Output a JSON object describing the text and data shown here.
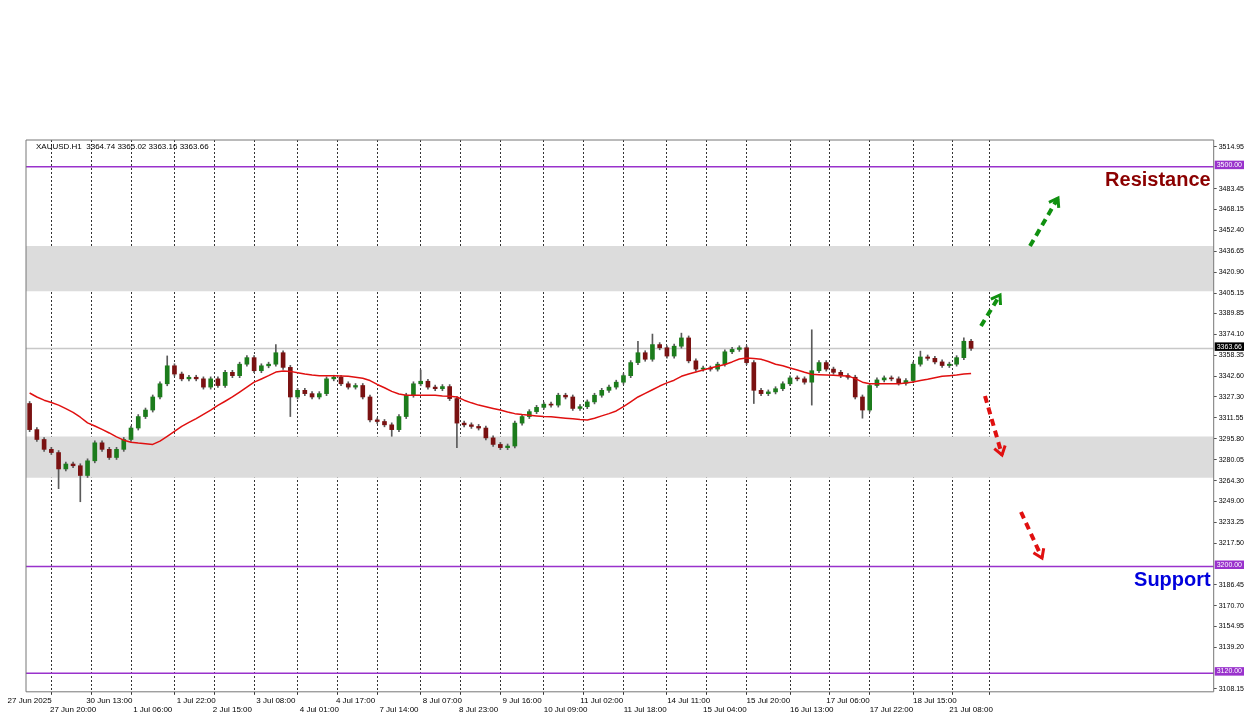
{
  "chart_data": {
    "type": "candlestick",
    "categories": [
      "27 Jun 2025",
      null,
      null,
      null,
      null,
      null,
      "27 Jun 20:00",
      null,
      null,
      null,
      null,
      "30 Jun 13:00",
      null,
      null,
      null,
      null,
      null,
      "1 Jul 06:00",
      null,
      null,
      null,
      null,
      null,
      "1 Jul 22:00",
      null,
      null,
      null,
      null,
      "2 Jul 15:00",
      null,
      null,
      null,
      null,
      null,
      "3 Jul 08:00",
      null,
      null,
      null,
      null,
      null,
      "4 Jul 01:00",
      null,
      null,
      null,
      null,
      "4 Jul 17:00",
      null,
      null,
      null,
      null,
      null,
      "7 Jul 14:00",
      null,
      null,
      null,
      null,
      null,
      "8 Jul 07:00",
      null,
      null,
      null,
      null,
      "8 Jul 23:00",
      null,
      null,
      null,
      null,
      null,
      "9 Jul 16:00",
      null,
      null,
      null,
      null,
      null,
      "10 Jul 09:00",
      null,
      null,
      null,
      null,
      "11 Jul 02:00",
      null,
      null,
      null,
      null,
      null,
      "11 Jul 18:00",
      null,
      null,
      null,
      null,
      null,
      "14 Jul 11:00",
      null,
      null,
      null,
      null,
      "15 Jul 04:00",
      null,
      null,
      null,
      null,
      null,
      "15 Jul 20:00",
      null,
      null,
      null,
      null,
      null,
      "16 Jul 13:00",
      null,
      null,
      null,
      null,
      "17 Jul 06:00",
      null,
      null,
      null,
      null,
      null,
      "17 Jul 22:00",
      null,
      null,
      null,
      null,
      null,
      "18 Jul 15:00",
      null,
      null,
      null,
      null,
      "21 Jul 08:00",
      null,
      null,
      null,
      null,
      null,
      null,
      null,
      null,
      null,
      null,
      null,
      null,
      null,
      null,
      null,
      null,
      null,
      null,
      null,
      null,
      null,
      null,
      null,
      null,
      null,
      null,
      null,
      null,
      null,
      null,
      null,
      null,
      null
    ],
    "series": [
      {
        "type": "candlestick",
        "ohlc": [
          [
            3322.3,
            3323.8,
            3301.2,
            3302.7
          ],
          [
            3302.7,
            3304.2,
            3293.8,
            3295.3
          ],
          [
            3295.3,
            3296.8,
            3286.4,
            3287.9
          ],
          [
            3287.9,
            3289.4,
            3284.0,
            3285.5
          ],
          [
            3285.5,
            3287.0,
            3258.4,
            3273.2
          ],
          [
            3273.2,
            3278.4,
            3271.7,
            3276.9
          ],
          [
            3276.9,
            3278.4,
            3274.1,
            3275.6
          ],
          [
            3275.6,
            3277.1,
            3248.6,
            3268.3
          ],
          [
            3268.3,
            3280.8,
            3266.8,
            3279.3
          ],
          [
            3279.3,
            3294.3,
            3277.8,
            3292.8
          ],
          [
            3292.8,
            3294.3,
            3286.4,
            3287.9
          ],
          [
            3287.9,
            3289.4,
            3280.3,
            3281.8
          ],
          [
            3281.8,
            3289.4,
            3280.3,
            3287.9
          ],
          [
            3287.9,
            3296.8,
            3286.4,
            3295.3
          ],
          [
            3295.3,
            3305.4,
            3293.8,
            3303.9
          ],
          [
            3303.9,
            3314.0,
            3302.4,
            3312.5
          ],
          [
            3312.5,
            3318.9,
            3311.0,
            3317.4
          ],
          [
            3317.4,
            3328.7,
            3315.9,
            3327.2
          ],
          [
            3327.2,
            3338.6,
            3325.7,
            3337.1
          ],
          [
            3337.1,
            3358.0,
            3335.6,
            3350.6
          ],
          [
            3350.6,
            3352.1,
            3342.9,
            3344.4
          ],
          [
            3344.4,
            3345.9,
            3339.3,
            3340.8
          ],
          [
            3340.8,
            3343.5,
            3339.3,
            3342.0
          ],
          [
            3342.0,
            3343.5,
            3339.3,
            3340.8
          ],
          [
            3340.8,
            3342.3,
            3333.1,
            3334.6
          ],
          [
            3334.6,
            3342.3,
            3333.1,
            3340.8
          ],
          [
            3340.8,
            3342.3,
            3334.3,
            3335.8
          ],
          [
            3335.8,
            3347.2,
            3334.3,
            3345.7
          ],
          [
            3345.7,
            3347.2,
            3341.7,
            3343.2
          ],
          [
            3343.2,
            3353.3,
            3341.7,
            3351.8
          ],
          [
            3351.8,
            3358.2,
            3350.3,
            3356.7
          ],
          [
            3356.7,
            3358.2,
            3345.4,
            3346.9
          ],
          [
            3346.9,
            3352.1,
            3345.4,
            3350.6
          ],
          [
            3350.6,
            3353.3,
            3349.1,
            3351.8
          ],
          [
            3351.8,
            3366.5,
            3350.3,
            3360.4
          ],
          [
            3360.4,
            3361.9,
            3347.9,
            3349.4
          ],
          [
            3349.4,
            3350.9,
            3312.5,
            3327.2
          ],
          [
            3327.2,
            3333.7,
            3325.7,
            3332.2
          ],
          [
            3332.2,
            3333.7,
            3328.2,
            3329.7
          ],
          [
            3329.7,
            3331.2,
            3325.7,
            3327.2
          ],
          [
            3327.2,
            3331.2,
            3325.7,
            3329.7
          ],
          [
            3329.7,
            3342.3,
            3328.2,
            3340.8
          ],
          [
            3340.8,
            3343.5,
            3339.3,
            3342.0
          ],
          [
            3342.0,
            3343.5,
            3335.6,
            3337.1
          ],
          [
            3337.1,
            3338.6,
            3333.1,
            3334.6
          ],
          [
            3334.6,
            3337.3,
            3333.1,
            3335.8
          ],
          [
            3335.8,
            3337.3,
            3325.7,
            3327.2
          ],
          [
            3327.2,
            3328.7,
            3308.5,
            3310.0
          ],
          [
            3310.0,
            3311.5,
            3307.3,
            3308.8
          ],
          [
            3308.8,
            3310.3,
            3304.8,
            3306.3
          ],
          [
            3306.3,
            3307.8,
            3297.7,
            3302.7
          ],
          [
            3302.7,
            3314.0,
            3301.2,
            3312.5
          ],
          [
            3312.5,
            3330.0,
            3311.0,
            3328.5
          ],
          [
            3328.5,
            3338.6,
            3327.0,
            3337.1
          ],
          [
            3337.1,
            3347.4,
            3335.6,
            3339.0
          ],
          [
            3339.0,
            3340.5,
            3333.1,
            3334.6
          ],
          [
            3334.6,
            3336.1,
            3331.9,
            3333.4
          ],
          [
            3333.4,
            3336.5,
            3331.9,
            3335.0
          ],
          [
            3335.0,
            3336.5,
            3324.5,
            3326.0
          ],
          [
            3326.0,
            3327.5,
            3289.2,
            3307.6
          ],
          [
            3307.6,
            3309.1,
            3304.8,
            3306.3
          ],
          [
            3306.3,
            3307.8,
            3303.6,
            3305.1
          ],
          [
            3305.1,
            3306.6,
            3302.4,
            3303.9
          ],
          [
            3303.9,
            3305.4,
            3295.0,
            3296.5
          ],
          [
            3296.5,
            3298.0,
            3290.1,
            3291.6
          ],
          [
            3291.6,
            3293.1,
            3287.7,
            3289.2
          ],
          [
            3289.2,
            3291.9,
            3287.7,
            3290.4
          ],
          [
            3290.4,
            3309.1,
            3288.9,
            3307.6
          ],
          [
            3307.6,
            3314.0,
            3306.1,
            3312.5
          ],
          [
            3312.5,
            3317.7,
            3311.0,
            3316.2
          ],
          [
            3316.2,
            3320.9,
            3314.7,
            3319.4
          ],
          [
            3319.4,
            3323.3,
            3317.9,
            3321.8
          ],
          [
            3321.8,
            3323.3,
            3319.6,
            3321.1
          ],
          [
            3321.1,
            3330.0,
            3319.6,
            3328.5
          ],
          [
            3328.5,
            3330.0,
            3325.7,
            3327.2
          ],
          [
            3327.2,
            3328.7,
            3317.1,
            3318.6
          ],
          [
            3318.6,
            3321.4,
            3317.1,
            3319.9
          ],
          [
            3319.9,
            3325.0,
            3318.4,
            3323.5
          ],
          [
            3323.5,
            3330.0,
            3322.0,
            3328.5
          ],
          [
            3328.5,
            3333.7,
            3327.0,
            3332.2
          ],
          [
            3332.2,
            3336.1,
            3330.7,
            3334.6
          ],
          [
            3334.6,
            3339.8,
            3333.1,
            3338.3
          ],
          [
            3338.3,
            3344.7,
            3336.8,
            3343.2
          ],
          [
            3343.2,
            3354.5,
            3341.7,
            3353.0
          ],
          [
            3353.0,
            3369.0,
            3351.5,
            3360.4
          ],
          [
            3360.4,
            3361.9,
            3354.0,
            3355.5
          ],
          [
            3355.5,
            3374.4,
            3354.0,
            3366.5
          ],
          [
            3366.5,
            3368.0,
            3362.6,
            3364.1
          ],
          [
            3364.1,
            3365.6,
            3356.4,
            3357.9
          ],
          [
            3357.9,
            3366.8,
            3356.4,
            3365.3
          ],
          [
            3365.3,
            3375.1,
            3363.8,
            3371.5
          ],
          [
            3371.5,
            3373.0,
            3352.8,
            3354.3
          ],
          [
            3354.3,
            3355.8,
            3346.6,
            3348.1
          ],
          [
            3348.1,
            3350.4,
            3346.6,
            3348.9
          ],
          [
            3348.9,
            3350.4,
            3346.6,
            3348.1
          ],
          [
            3348.1,
            3353.3,
            3346.6,
            3351.8
          ],
          [
            3351.8,
            3362.6,
            3350.3,
            3361.1
          ],
          [
            3361.1,
            3364.4,
            3359.6,
            3362.9
          ],
          [
            3362.9,
            3365.6,
            3361.4,
            3364.1
          ],
          [
            3364.1,
            3365.6,
            3351.5,
            3353.0
          ],
          [
            3353.0,
            3354.5,
            3322.3,
            3332.2
          ],
          [
            3332.2,
            3333.7,
            3328.2,
            3329.7
          ],
          [
            3329.7,
            3332.5,
            3328.2,
            3331.0
          ],
          [
            3331.0,
            3334.9,
            3329.5,
            3333.4
          ],
          [
            3333.4,
            3338.6,
            3331.9,
            3337.1
          ],
          [
            3337.1,
            3343.0,
            3335.6,
            3341.5
          ],
          [
            3341.5,
            3343.0,
            3339.3,
            3340.8
          ],
          [
            3340.8,
            3342.3,
            3336.8,
            3338.3
          ],
          [
            3338.3,
            3377.6,
            3321.1,
            3346.9
          ],
          [
            3346.9,
            3354.5,
            3345.4,
            3353.0
          ],
          [
            3353.0,
            3354.5,
            3346.6,
            3348.1
          ],
          [
            3348.1,
            3349.6,
            3344.2,
            3345.7
          ],
          [
            3345.7,
            3347.2,
            3341.7,
            3343.2
          ],
          [
            3343.2,
            3344.7,
            3340.5,
            3342.0
          ],
          [
            3342.0,
            3343.5,
            3325.7,
            3327.2
          ],
          [
            3327.2,
            3328.7,
            3311.3,
            3317.4
          ],
          [
            3317.4,
            3337.3,
            3315.9,
            3335.8
          ],
          [
            3335.8,
            3341.5,
            3334.3,
            3340.0
          ],
          [
            3340.0,
            3343.0,
            3338.5,
            3341.5
          ],
          [
            3341.5,
            3343.0,
            3339.3,
            3340.8
          ],
          [
            3340.8,
            3342.3,
            3336.1,
            3337.6
          ],
          [
            3337.6,
            3341.0,
            3336.1,
            3339.5
          ],
          [
            3339.5,
            3353.3,
            3338.0,
            3351.8
          ],
          [
            3351.8,
            3361.6,
            3350.3,
            3357.2
          ],
          [
            3357.2,
            3358.7,
            3354.7,
            3356.2
          ],
          [
            3356.2,
            3357.7,
            3352.0,
            3353.5
          ],
          [
            3353.5,
            3355.0,
            3349.3,
            3350.8
          ],
          [
            3350.8,
            3353.3,
            3349.3,
            3351.8
          ],
          [
            3351.8,
            3358.2,
            3350.3,
            3356.7
          ],
          [
            3356.7,
            3371.5,
            3355.2,
            3369.0
          ],
          [
            3369.0,
            3370.5,
            3362.2,
            3363.7
          ],
          null,
          null,
          null,
          null,
          null,
          null,
          null,
          null,
          null,
          null,
          null,
          null,
          null,
          null,
          null,
          null,
          null,
          null,
          null,
          null,
          null,
          null,
          null,
          null,
          null,
          null,
          null,
          null,
          null,
          null,
          null,
          null,
          null
        ]
      },
      {
        "type": "line",
        "color": "#e01010",
        "values": [
          3330.2,
          3327.2,
          3324.8,
          3323.1,
          3321.1,
          3318.4,
          3315.7,
          3312.0,
          3307.8,
          3305.4,
          3302.9,
          3300.2,
          3297.3,
          3294.8,
          3293.3,
          3292.6,
          3292.1,
          3291.6,
          3294.1,
          3297.7,
          3301.4,
          3305.1,
          3308.1,
          3311.0,
          3314.2,
          3317.4,
          3320.9,
          3324.0,
          3327.2,
          3330.9,
          3334.6,
          3338.3,
          3340.7,
          3343.2,
          3345.9,
          3346.6,
          3346.4,
          3345.4,
          3344.4,
          3343.7,
          3343.2,
          3343.2,
          3343.2,
          3343.0,
          3342.7,
          3342.0,
          3341.2,
          3339.5,
          3336.6,
          3334.1,
          3331.4,
          3329.4,
          3328.5,
          3328.5,
          3328.5,
          3328.5,
          3328.5,
          3328.0,
          3327.7,
          3327.2,
          3324.8,
          3322.8,
          3321.1,
          3319.9,
          3318.6,
          3317.4,
          3315.9,
          3314.7,
          3314.0,
          3313.5,
          3313.0,
          3312.5,
          3312.3,
          3311.8,
          3311.3,
          3310.8,
          3310.3,
          3310.0,
          3311.3,
          3313.0,
          3314.7,
          3316.7,
          3319.9,
          3323.5,
          3327.2,
          3329.9,
          3332.6,
          3335.4,
          3337.8,
          3339.8,
          3342.7,
          3344.4,
          3345.9,
          3347.4,
          3348.9,
          3350.3,
          3351.6,
          3353.5,
          3355.7,
          3356.5,
          3356.0,
          3355.5,
          3353.8,
          3351.8,
          3350.6,
          3348.9,
          3347.4,
          3345.7,
          3344.2,
          3343.9,
          3343.7,
          3343.5,
          3343.2,
          3343.0,
          3341.0,
          3338.3,
          3337.1,
          3337.1,
          3337.1,
          3337.1,
          3337.1,
          3337.6,
          3338.5,
          3339.5,
          3340.5,
          3341.7,
          3342.7,
          3343.2,
          3343.7,
          3344.4,
          3344.9,
          null,
          null,
          null,
          null,
          null,
          null,
          null,
          null,
          null,
          null,
          null,
          null,
          null,
          null,
          null,
          null,
          null,
          null,
          null,
          null,
          null,
          null,
          null,
          null,
          null,
          null,
          null,
          null,
          null,
          null,
          null,
          null,
          null
        ]
      }
    ],
    "ylim": [
      3106,
      3520
    ],
    "yticks": [
      3514.95,
      3483.45,
      3468.15,
      {
        "value": 3452.4,
        "label": "3452.40"
      },
      3436.65,
      {
        "value": 3420.9,
        "label": "3420.90"
      },
      3405.15,
      3389.85,
      {
        "value": 3374.1,
        "label": "3374.10"
      },
      3358.35,
      {
        "value": 3342.6,
        "label": "3342.60"
      },
      {
        "value": 3327.3,
        "label": "3327.30"
      },
      3311.55,
      {
        "value": 3295.8,
        "label": "3295.80"
      },
      3280.05,
      {
        "value": 3264.3,
        "label": "3264.30"
      },
      {
        "value": 3249,
        "label": "3249.00"
      },
      3233.25,
      {
        "value": 3217.5,
        "label": "3217.50"
      },
      3186.45,
      {
        "value": 3170.7,
        "label": "3170.70"
      },
      3154.95,
      {
        "value": 3139.2,
        "label": "3139.20"
      },
      3108.15
    ],
    "grid": "x",
    "bands": [
      {
        "axis": "y",
        "from": 3406.6,
        "to": 3440.5,
        "color": "#dcdcdc"
      },
      {
        "axis": "y",
        "from": 3266.6,
        "to": 3297.5,
        "color": "#dcdcdc"
      }
    ],
    "ref_lines": [
      {
        "axis": "y",
        "value": 3500,
        "label": "3500.00",
        "color": "#9932cc"
      },
      {
        "axis": "y",
        "value": 3200,
        "label": "3200.00",
        "color": "#9932cc"
      },
      {
        "axis": "y",
        "value": 3120,
        "label": "3120.00",
        "color": "#9932cc"
      },
      {
        "axis": "y",
        "value": 3363.66,
        "label": "3363.66",
        "color": "#c8c8c8"
      }
    ],
    "annotations": [
      "XAUUSD.H1  3364.74 3365.02 3363.16 3363.66",
      "Resistance",
      "Support"
    ]
  }
}
